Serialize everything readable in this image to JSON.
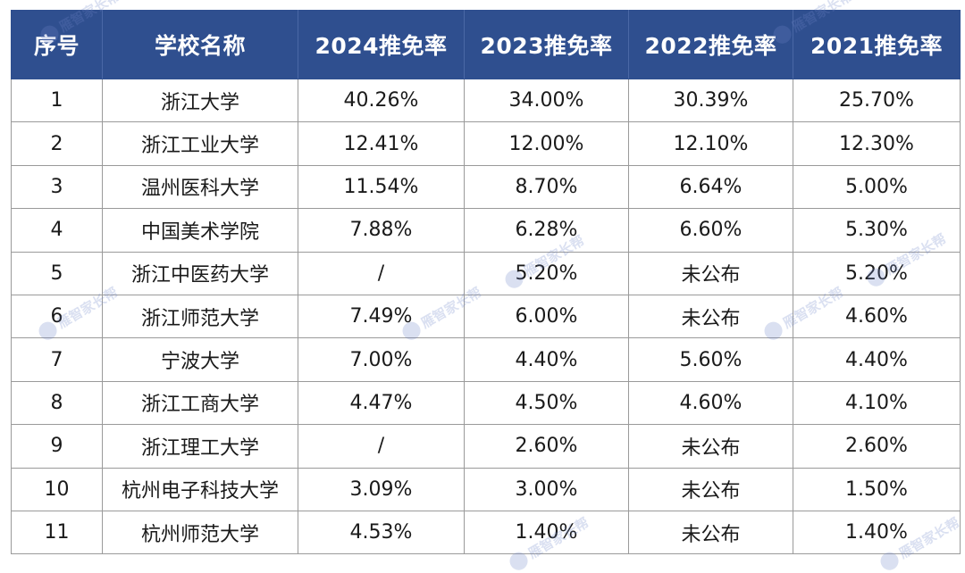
{
  "table": {
    "headers": [
      "序号",
      "学校名称",
      "2024推免率",
      "2023推免率",
      "2022推免率",
      "2021推免率"
    ],
    "rows": [
      [
        "1",
        "浙江大学",
        "40.26%",
        "34.00%",
        "30.39%",
        "25.70%"
      ],
      [
        "2",
        "浙江工业大学",
        "12.41%",
        "12.00%",
        "12.10%",
        "12.30%"
      ],
      [
        "3",
        "温州医科大学",
        "11.54%",
        "8.70%",
        "6.64%",
        "5.00%"
      ],
      [
        "4",
        "中国美术学院",
        "7.88%",
        "6.28%",
        "6.60%",
        "5.30%"
      ],
      [
        "5",
        "浙江中医药大学",
        "/",
        "5.20%",
        "未公布",
        "5.20%"
      ],
      [
        "6",
        "浙江师范大学",
        "7.49%",
        "6.00%",
        "未公布",
        "4.60%"
      ],
      [
        "7",
        "宁波大学",
        "7.00%",
        "4.40%",
        "5.60%",
        "4.40%"
      ],
      [
        "8",
        "浙江工商大学",
        "4.47%",
        "4.50%",
        "4.60%",
        "4.10%"
      ],
      [
        "9",
        "浙江理工大学",
        "/",
        "2.60%",
        "未公布",
        "2.60%"
      ],
      [
        "10",
        "杭州电子科技大学",
        "3.09%",
        "3.00%",
        "未公布",
        "1.50%"
      ],
      [
        "11",
        "杭州师范大学",
        "4.53%",
        "1.40%",
        "未公布",
        "1.40%"
      ]
    ]
  },
  "watermark": {
    "text": "雁智家长帮"
  },
  "colors": {
    "header_bg": "#2f4f8f",
    "header_text": "#ffffff",
    "grid": "#9a9a9a"
  }
}
